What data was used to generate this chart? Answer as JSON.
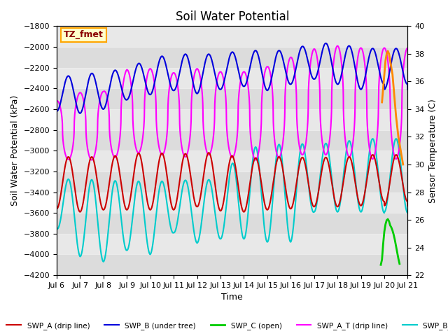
{
  "title": "Soil Water Potential",
  "xlabel": "Time",
  "ylabel_left": "Soil Water Potential (kPa)",
  "ylabel_right": "Sensor Temperature (C)",
  "annotation_text": "TZ_fmet",
  "annotation_color": "#8B0000",
  "annotation_bg": "#FFFFCC",
  "annotation_border": "#FFA500",
  "ylim_left": [
    -4200,
    -1800
  ],
  "ylim_right": [
    22,
    40
  ],
  "xlim_days": 15,
  "xtick_labels": [
    "Jul 6",
    "Jul 7",
    "Jul 8",
    "Jul 9",
    "Jul 10",
    "Jul 11",
    "Jul 12",
    "Jul 13",
    "Jul 14",
    "Jul 15",
    "Jul 16",
    "Jul 17",
    "Jul 18",
    "Jul 19",
    "Jul 20",
    "Jul 21"
  ],
  "xtick_positions": [
    0,
    1,
    2,
    3,
    4,
    5,
    6,
    7,
    8,
    9,
    10,
    11,
    12,
    13,
    14,
    15
  ],
  "ytick_left": [
    -4200,
    -4000,
    -3800,
    -3600,
    -3400,
    -3200,
    -3000,
    -2800,
    -2600,
    -2400,
    -2200,
    -2000,
    -1800
  ],
  "ytick_right": [
    22,
    24,
    26,
    28,
    30,
    32,
    34,
    36,
    38,
    40
  ],
  "fig_bg": "#FFFFFF",
  "plot_bg": "#D8D8D8",
  "grid_color": "#ECECEC",
  "swp_a_color": "#CC0000",
  "swp_b_color": "#0000DD",
  "swp_c_color": "#00CC00",
  "swp_at_color": "#FF00FF",
  "swp_bt_color": "#00CCCC",
  "swp_ct_color": "#FF8800",
  "linewidth": 1.5,
  "legend_fontsize": 7.5,
  "title_fontsize": 12,
  "axis_fontsize": 9,
  "tick_fontsize": 8
}
